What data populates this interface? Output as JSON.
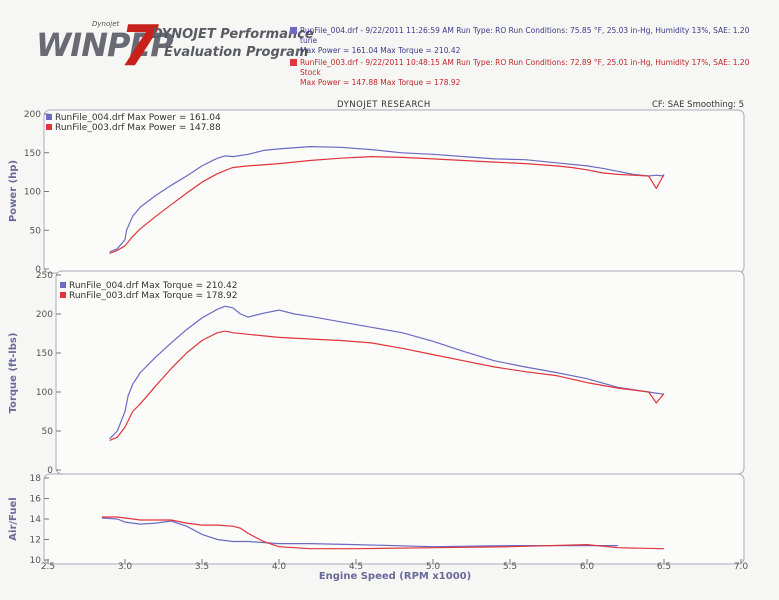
{
  "header": {
    "logo_small": "Dynojet",
    "logo_word": "WINPEP",
    "logo_seven": "7",
    "program_title_line1": "DYNOJET Performance",
    "program_title_line2": "Evaluation Program"
  },
  "runs": [
    {
      "line1": "RunFile_004.drf - 9/22/2011 11:26:59 AM  Run Type: RO  Run Conditions: 75.85 °F, 25.03 in-Hg,  Humidity  13%, SAE: 1.20",
      "line2": "tune",
      "line3": "Max Power = 161.04  Max Torque = 210.42",
      "color": "#6b6bc4"
    },
    {
      "line1": "RunFile_003.drf - 9/22/2011 10:48:15 AM  Run Type: RO  Run Conditions: 72.89 °F, 25.01 in-Hg,  Humidity  17%, SAE: 1.20",
      "line2": "Stock",
      "line3": "Max Power = 147.88  Max Torque = 178.92",
      "color": "#e0353b"
    }
  ],
  "dynojet_research": "DYNOJET RESEARCH",
  "cf_text": "CF: SAE  Smoothing: 5",
  "chart_data": [
    {
      "type": "line",
      "ylabel": "Power (hp)",
      "ylim": [
        0,
        200
      ],
      "yticks": [
        "0",
        "50",
        "100",
        "150",
        "200"
      ],
      "xlim": [
        2.5,
        7.0
      ],
      "legend": [
        "RunFile_004.drf Max Power = 161.04",
        "RunFile_003.drf Max Power = 147.88"
      ],
      "series": [
        {
          "name": "RunFile_004.drf",
          "color": "#6b6bc4",
          "x": [
            2.9,
            2.95,
            3.0,
            3.01,
            3.05,
            3.1,
            3.2,
            3.3,
            3.4,
            3.5,
            3.6,
            3.65,
            3.7,
            3.8,
            3.9,
            4.0,
            4.2,
            4.4,
            4.6,
            4.8,
            5.0,
            5.2,
            5.4,
            5.6,
            5.8,
            6.0,
            6.1,
            6.2,
            6.3,
            6.4,
            6.45,
            6.5
          ],
          "y": [
            22,
            26,
            38,
            50,
            68,
            80,
            95,
            108,
            120,
            133,
            143,
            146,
            145,
            148,
            153,
            155,
            158,
            157,
            154,
            150,
            148,
            145,
            142,
            141,
            137,
            133,
            130,
            126,
            122,
            120,
            121,
            120
          ]
        },
        {
          "name": "RunFile_003.drf",
          "color": "#e0353b",
          "x": [
            2.9,
            2.95,
            3.0,
            3.05,
            3.1,
            3.2,
            3.3,
            3.4,
            3.5,
            3.6,
            3.65,
            3.7,
            3.8,
            4.0,
            4.2,
            4.4,
            4.6,
            4.8,
            5.0,
            5.2,
            5.4,
            5.6,
            5.8,
            5.9,
            6.0,
            6.1,
            6.2,
            6.3,
            6.4,
            6.45,
            6.5
          ],
          "y": [
            20,
            24,
            30,
            42,
            52,
            68,
            83,
            98,
            112,
            123,
            127,
            131,
            133,
            136,
            140,
            143,
            145,
            144,
            142,
            140,
            138,
            136,
            133,
            131,
            128,
            124,
            122,
            121,
            120,
            104,
            122
          ]
        }
      ]
    },
    {
      "type": "line",
      "ylabel": "Torque (ft-lbs)",
      "ylim": [
        0,
        250
      ],
      "yticks": [
        "0",
        "50",
        "100",
        "150",
        "200",
        "250"
      ],
      "xlim": [
        2.5,
        7.0
      ],
      "legend": [
        "RunFile_004.drf Max Torque = 210.42",
        "RunFile_003.drf Max Torque = 178.92"
      ],
      "series": [
        {
          "name": "RunFile_004.drf",
          "color": "#6b6bc4",
          "x": [
            2.9,
            2.95,
            3.0,
            3.02,
            3.05,
            3.1,
            3.2,
            3.3,
            3.4,
            3.5,
            3.6,
            3.65,
            3.7,
            3.75,
            3.8,
            3.9,
            4.0,
            4.1,
            4.2,
            4.4,
            4.6,
            4.8,
            5.0,
            5.2,
            5.4,
            5.6,
            5.8,
            6.0,
            6.2,
            6.4,
            6.5
          ],
          "y": [
            40,
            50,
            75,
            95,
            110,
            125,
            145,
            163,
            180,
            195,
            206,
            210,
            208,
            200,
            196,
            201,
            205,
            200,
            197,
            190,
            183,
            176,
            165,
            152,
            140,
            132,
            125,
            117,
            106,
            100,
            97
          ]
        },
        {
          "name": "RunFile_003.drf",
          "color": "#e0353b",
          "x": [
            2.9,
            2.95,
            3.0,
            3.05,
            3.1,
            3.2,
            3.3,
            3.4,
            3.5,
            3.6,
            3.65,
            3.7,
            3.8,
            4.0,
            4.2,
            4.4,
            4.6,
            4.8,
            5.0,
            5.2,
            5.4,
            5.6,
            5.8,
            6.0,
            6.2,
            6.4,
            6.45,
            6.5
          ],
          "y": [
            38,
            42,
            55,
            75,
            85,
            108,
            130,
            150,
            166,
            176,
            178,
            176,
            174,
            170,
            168,
            166,
            163,
            156,
            148,
            140,
            132,
            126,
            121,
            112,
            105,
            100,
            86,
            98
          ]
        }
      ]
    },
    {
      "type": "line",
      "ylabel": "Air/Fuel",
      "ylim": [
        10,
        18
      ],
      "yticks": [
        "10",
        "12",
        "14",
        "16",
        "18"
      ],
      "xlim": [
        2.5,
        7.0
      ],
      "xticks": [
        "2.5",
        "3.0",
        "3.5",
        "4.0",
        "4.5",
        "5.0",
        "5.5",
        "6.0",
        "6.5",
        "7.0"
      ],
      "xlabel": "Engine Speed (RPM x1000)",
      "series": [
        {
          "name": "RunFile_004.drf",
          "color": "#6b6bc4",
          "x": [
            2.85,
            2.95,
            3.0,
            3.1,
            3.2,
            3.3,
            3.4,
            3.5,
            3.6,
            3.7,
            3.8,
            4.0,
            4.2,
            4.5,
            5.0,
            5.5,
            6.0,
            6.2
          ],
          "y": [
            14.1,
            14.0,
            13.7,
            13.5,
            13.6,
            13.8,
            13.3,
            12.5,
            12.0,
            11.8,
            11.8,
            11.6,
            11.6,
            11.5,
            11.3,
            11.4,
            11.4,
            11.4
          ]
        },
        {
          "name": "RunFile_003.drf",
          "color": "#e0353b",
          "x": [
            2.85,
            2.95,
            3.0,
            3.1,
            3.2,
            3.3,
            3.4,
            3.5,
            3.6,
            3.7,
            3.75,
            3.8,
            3.9,
            4.0,
            4.2,
            4.5,
            5.0,
            5.5,
            6.0,
            6.2,
            6.5
          ],
          "y": [
            14.2,
            14.2,
            14.1,
            13.9,
            13.9,
            13.9,
            13.6,
            13.4,
            13.4,
            13.3,
            13.1,
            12.6,
            11.8,
            11.3,
            11.1,
            11.1,
            11.2,
            11.3,
            11.5,
            11.2,
            11.1
          ]
        }
      ]
    }
  ]
}
